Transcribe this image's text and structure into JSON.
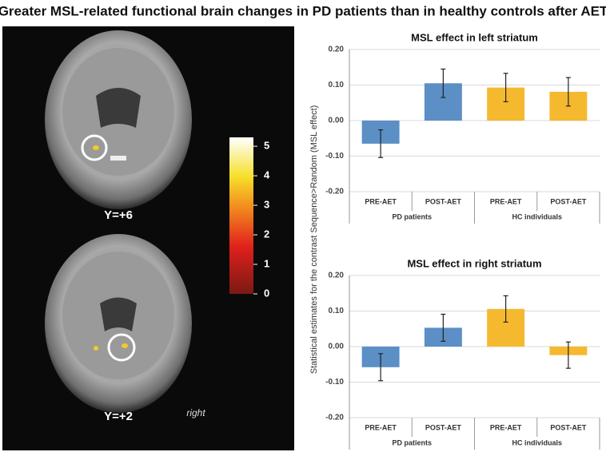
{
  "figure_title": "Greater MSL-related functional brain changes in PD patients than in healthy controls after AET",
  "brain_panel": {
    "slice_labels": [
      "Y=+6",
      "Y=+2"
    ],
    "side_label": "right",
    "colorbar": {
      "ylim": [
        0,
        5.3
      ],
      "yticks": [
        0,
        1,
        2,
        3,
        4,
        5
      ]
    }
  },
  "shared_ylabel": "Statistical estimates for the contrast Sequence>Random (MSL effect)",
  "chart_data": [
    {
      "type": "bar",
      "title": "MSL effect in left striatum",
      "categories": [
        "PRE-AET",
        "POST-AET",
        "PRE-AET",
        "POST-AET"
      ],
      "groups": [
        "PD patients",
        "HC individuals"
      ],
      "values": [
        -0.065,
        0.105,
        0.093,
        0.081
      ],
      "errors": [
        0.039,
        0.04,
        0.04,
        0.04
      ],
      "colors": [
        "#5b8fc6",
        "#5b8fc6",
        "#f5b92f",
        "#f5b92f"
      ],
      "ylim": [
        -0.2,
        0.2
      ],
      "yticks": [
        {
          "value": -0.2,
          "label": "-0.20"
        },
        {
          "value": -0.1,
          "label": "-0.10"
        },
        {
          "value": 0,
          "label": "0.00"
        },
        {
          "value": 0.1,
          "label": "0.10"
        },
        {
          "value": 0.2,
          "label": "0.20"
        }
      ],
      "grid": true
    },
    {
      "type": "bar",
      "title": "MSL effect in right striatum",
      "categories": [
        "PRE-AET",
        "POST-AET",
        "PRE-AET",
        "POST-AET"
      ],
      "groups": [
        "PD patients",
        "HC individuals"
      ],
      "values": [
        -0.058,
        0.053,
        0.106,
        -0.024
      ],
      "errors": [
        0.038,
        0.038,
        0.037,
        0.037
      ],
      "colors": [
        "#5b8fc6",
        "#5b8fc6",
        "#f5b92f",
        "#f5b92f"
      ],
      "ylim": [
        -0.2,
        0.2
      ],
      "yticks": [
        {
          "value": -0.2,
          "label": "-0.20"
        },
        {
          "value": -0.1,
          "label": "-0.10"
        },
        {
          "value": 0,
          "label": "0.00"
        },
        {
          "value": 0.1,
          "label": "0.10"
        },
        {
          "value": 0.2,
          "label": "0.20"
        }
      ],
      "grid": true
    }
  ]
}
